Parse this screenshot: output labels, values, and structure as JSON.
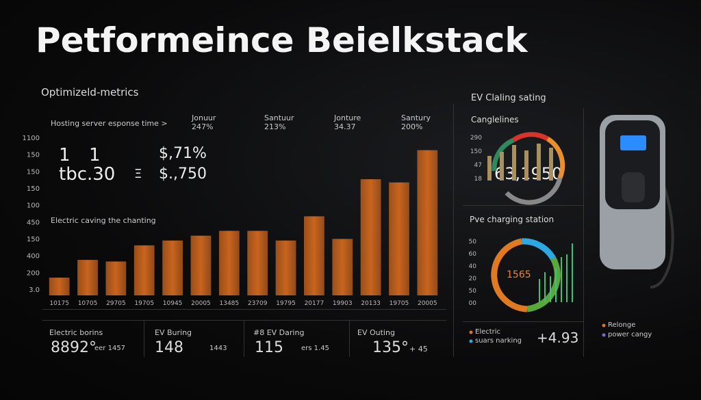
{
  "header": {
    "title": "Petformeince Beielkstack"
  },
  "main_panel": {
    "subtitle": "Optimizeld-metrics",
    "metric_label": "Hosting server esponse time >",
    "columns": [
      {
        "name": "Jonuur",
        "value": "247%"
      },
      {
        "name": "Santuur",
        "value": "213%"
      },
      {
        "name": "Jonture",
        "value": "34.37"
      },
      {
        "name": "Santury",
        "value": "200%"
      }
    ],
    "big_row_1": [
      "1",
      "1",
      "$,71%"
    ],
    "big_row_2": [
      "tbc.30",
      "Ξ",
      "$.,750"
    ],
    "chart_caption": "Electric caving the chanting",
    "y_labels": [
      "1100",
      "150",
      "150",
      "150",
      "100",
      "450",
      "150",
      "400",
      "200",
      "3.0"
    ]
  },
  "chart_data": {
    "type": "bar",
    "categories": [
      "10175",
      "10705",
      "29705",
      "19705",
      "10945",
      "20005",
      "13485",
      "23709",
      "19795",
      "20177",
      "19903",
      "20133",
      "19705",
      "20005"
    ],
    "values": [
      11,
      22,
      21,
      31,
      34,
      37,
      40,
      40,
      34,
      49,
      35,
      72,
      70,
      90
    ],
    "ylim": [
      0,
      100
    ],
    "color": "#c8641e"
  },
  "cards": [
    {
      "label": "Electric borins",
      "value": "8892°",
      "sub": "eer 1457"
    },
    {
      "label": "EV Buring",
      "value": "148",
      "sub": "1443"
    },
    {
      "label": "#8 EV Daring",
      "value": "115",
      "sub": "ers 1.45"
    },
    {
      "label": "EV Outing",
      "value": "135°",
      "sub": "+ 45"
    }
  ],
  "side_top": {
    "title": "EV Claling sating",
    "subtitle": "Canglelines",
    "labels": [
      "290",
      "150",
      "47",
      "18"
    ],
    "value": "63,1950"
  },
  "side_mid": {
    "title": "Pve charging station",
    "labels": [
      "50",
      "60",
      "40",
      "20",
      "50",
      "00"
    ],
    "value": "1565"
  },
  "side_bottom": {
    "legend": [
      "Electric",
      "suars narking"
    ],
    "value": "+4.93"
  },
  "device_legend": [
    "Relonge",
    "power cangy"
  ]
}
